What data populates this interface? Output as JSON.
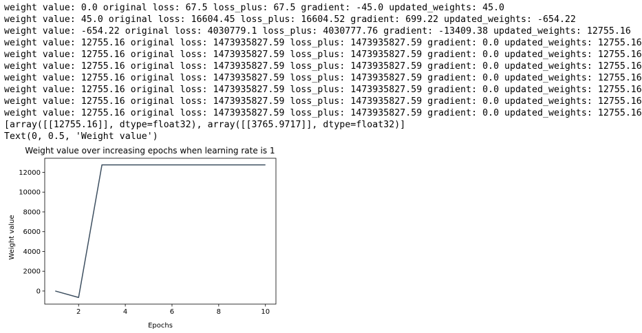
{
  "output": {
    "lines": [
      "weight value: 0.0 original loss: 67.5 loss_plus: 67.5 gradient: -45.0 updated_weights: 45.0",
      "weight value: 45.0 original loss: 16604.45 loss_plus: 16604.52 gradient: 699.22 updated_weights: -654.22",
      "weight value: -654.22 original loss: 4030779.1 loss_plus: 4030777.76 gradient: -13409.38 updated_weights: 12755.16",
      "weight value: 12755.16 original loss: 1473935827.59 loss_plus: 1473935827.59 gradient: 0.0 updated_weights: 12755.16",
      "weight value: 12755.16 original loss: 1473935827.59 loss_plus: 1473935827.59 gradient: 0.0 updated_weights: 12755.16",
      "weight value: 12755.16 original loss: 1473935827.59 loss_plus: 1473935827.59 gradient: 0.0 updated_weights: 12755.16",
      "weight value: 12755.16 original loss: 1473935827.59 loss_plus: 1473935827.59 gradient: 0.0 updated_weights: 12755.16",
      "weight value: 12755.16 original loss: 1473935827.59 loss_plus: 1473935827.59 gradient: 0.0 updated_weights: 12755.16",
      "weight value: 12755.16 original loss: 1473935827.59 loss_plus: 1473935827.59 gradient: 0.0 updated_weights: 12755.16",
      "weight value: 12755.16 original loss: 1473935827.59 loss_plus: 1473935827.59 gradient: 0.0 updated_weights: 12755.16",
      "[array([[12755.16]], dtype=float32), array([[3765.9717]], dtype=float32)]",
      "Text(0, 0.5, 'Weight value')"
    ]
  },
  "chart_data": {
    "type": "line",
    "title": "Weight value over increasing epochs when learning rate is 1",
    "xlabel": "Epochs",
    "ylabel": "Weight value",
    "x": [
      1,
      2,
      3,
      4,
      5,
      6,
      7,
      8,
      9,
      10
    ],
    "series": [
      {
        "values": [
          0.0,
          -654.22,
          12755.16,
          12755.16,
          12755.16,
          12755.16,
          12755.16,
          12755.16,
          12755.16,
          12755.16
        ],
        "color": "#3d4f60"
      }
    ],
    "xlim": [
      0.55,
      10.45
    ],
    "ylim": [
      -1325,
      13425
    ],
    "xticks": [
      2,
      4,
      6,
      8,
      10
    ],
    "yticks": [
      0,
      2000,
      4000,
      6000,
      8000,
      10000,
      12000
    ],
    "grid": false
  }
}
